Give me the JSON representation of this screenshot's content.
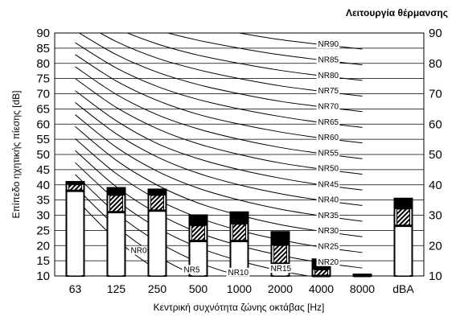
{
  "chart_data": {
    "type": "bar",
    "title": "Λειτουργία θέρμανσης",
    "xlabel": "Κεντρική συχνότητα ζώνης οκτάβας [Hz]",
    "ylabel": "Επίπεδο ηχητικής πίεσης [dB]",
    "ylim": [
      10,
      90
    ],
    "yticks": [
      10,
      15,
      20,
      25,
      30,
      35,
      40,
      45,
      50,
      55,
      60,
      65,
      70,
      75,
      80,
      85,
      90
    ],
    "yticks_right": [
      10,
      20,
      30,
      40,
      50,
      60,
      70,
      80,
      90
    ],
    "grid": true,
    "categories": [
      "63",
      "125",
      "250",
      "500",
      "1000",
      "2000",
      "4000",
      "8000",
      "dBA"
    ],
    "series": [
      {
        "values": [
          38,
          31,
          31.5,
          21.5,
          21.5,
          14,
          10,
          10,
          26.5
        ]
      },
      {
        "values": [
          40,
          36.5,
          36.5,
          26.5,
          27,
          20,
          12,
          10,
          32
        ]
      },
      {
        "values": [
          41,
          39,
          38.5,
          30,
          31,
          24.5,
          15.5,
          10.5,
          35.5
        ]
      }
    ],
    "nr_curves": [
      {
        "name": "NR0",
        "values": [
          35.5,
          22,
          12,
          4.8,
          0,
          -3.5,
          -6.1,
          -8
        ]
      },
      {
        "name": "NR5",
        "values": [
          39.4,
          26.3,
          16.6,
          9.7,
          5,
          1.6,
          -1,
          -2.8
        ]
      },
      {
        "name": "NR10",
        "values": [
          43.4,
          30.7,
          21.3,
          14.5,
          10,
          6.6,
          4.2,
          2.3
        ]
      },
      {
        "name": "NR15",
        "values": [
          47.3,
          35,
          25.9,
          19.4,
          15,
          11.7,
          9.3,
          7.4
        ]
      },
      {
        "name": "NR20",
        "values": [
          51.3,
          39.4,
          30.6,
          24.3,
          20,
          16.8,
          14.4,
          12.6
        ]
      },
      {
        "name": "NR25",
        "values": [
          55.2,
          43.7,
          35.2,
          29.2,
          25,
          21.9,
          19.5,
          17.7
        ]
      },
      {
        "name": "NR30",
        "values": [
          59.2,
          48.1,
          39.9,
          34,
          30,
          26.9,
          24.7,
          22.9
        ]
      },
      {
        "name": "NR35",
        "values": [
          63.1,
          52.4,
          44.5,
          38.9,
          35,
          32,
          29.8,
          28
        ]
      },
      {
        "name": "NR40",
        "values": [
          67.1,
          56.8,
          49.2,
          43.8,
          40,
          37.1,
          34.9,
          33.2
        ]
      },
      {
        "name": "NR45",
        "values": [
          71,
          61.1,
          53.6,
          48.6,
          45,
          42.2,
          40,
          38.3
        ]
      },
      {
        "name": "NR50",
        "values": [
          75,
          65.5,
          58.5,
          53.5,
          50,
          47.2,
          45.2,
          43.5
        ]
      },
      {
        "name": "NR55",
        "values": [
          78.9,
          69.8,
          63.1,
          58.4,
          55,
          52.3,
          50.3,
          48.6
        ]
      },
      {
        "name": "NR60",
        "values": [
          82.9,
          74.2,
          67.8,
          63.2,
          60,
          57.4,
          55.4,
          53.8
        ]
      },
      {
        "name": "NR65",
        "values": [
          86.8,
          78.5,
          72.4,
          68.1,
          65,
          62.5,
          60.5,
          58.9
        ]
      },
      {
        "name": "NR70",
        "values": [
          90.8,
          82.9,
          77.1,
          73,
          70,
          67.5,
          65.7,
          64.1
        ]
      },
      {
        "name": "NR75",
        "values": [
          94.7,
          87.2,
          81.7,
          77.9,
          75,
          72.6,
          70.8,
          69.2
        ]
      },
      {
        "name": "NR80",
        "values": [
          98.7,
          91.6,
          86.4,
          82.7,
          80,
          77.7,
          75.9,
          74.4
        ]
      },
      {
        "name": "NR85",
        "values": [
          102.6,
          95.9,
          91,
          87.6,
          85,
          82.8,
          81.1,
          79.5
        ]
      },
      {
        "name": "NR90",
        "values": [
          106.6,
          100.3,
          95.7,
          92.5,
          90,
          87.8,
          86.2,
          84.7
        ]
      }
    ]
  }
}
